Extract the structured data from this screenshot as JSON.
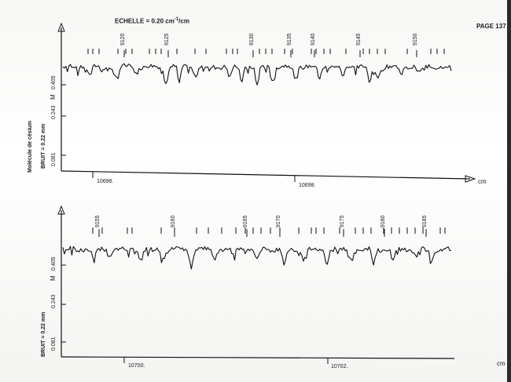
{
  "header": {
    "echelle_label": "ECHELLE",
    "echelle_value": "= 0.20 cm",
    "echelle_exp": "-1",
    "echelle_unit": "/cm",
    "page": "PAGE 137"
  },
  "left_labels": {
    "molecule": "Molécule de césium",
    "bruit": "BRUIT = 0.22 mm"
  },
  "chart_data": [
    {
      "type": "line",
      "title": "",
      "xlabel": "cm",
      "ylabel": "M",
      "x_ticks": [
        "10696.",
        "10698."
      ],
      "y_ticks": [
        "0.081",
        "0.243",
        "0.405"
      ],
      "line_numbers": [
        "9120",
        "9125",
        "9130",
        "9135",
        "9140",
        "9145",
        "9150"
      ],
      "series": [
        {
          "values": [
            0.405,
            0.41,
            0.42,
            0.4,
            0.39,
            0.405,
            0.415,
            0.402,
            0.3,
            0.41,
            0.42,
            0.405,
            0.39,
            0.3,
            0.41,
            0.415,
            0.4,
            0.39,
            0.35,
            0.41,
            0.42,
            0.4,
            0.405,
            0.395,
            0.35,
            0.41,
            0.42,
            0.4,
            0.38,
            0.2,
            0.38,
            0.41,
            0.42,
            0.4,
            0.39,
            0.35,
            0.41,
            0.415,
            0.4,
            0.36,
            0.38,
            0.4,
            0.39,
            0.35,
            0.3,
            0.38,
            0.4,
            0.36,
            0.3,
            0.25,
            0.35,
            0.39,
            0.4,
            0.38,
            0.2,
            0.38,
            0.4,
            0.415,
            0.4,
            0.39,
            0.35,
            0.41,
            0.415,
            0.4,
            0.38,
            0.405,
            0.41,
            0.36,
            0.3,
            0.39,
            0.41,
            0.42,
            0.4,
            0.39,
            0.35,
            0.38,
            0.4,
            0.36,
            0.3,
            0.25,
            0.36,
            0.39,
            0.41,
            0.4,
            0.38,
            0.35,
            0.4,
            0.42,
            0.41,
            0.39,
            0.4
          ],
          "dips": [
            {
              "x": 0.07,
              "y": 0.3
            },
            {
              "x": 0.1,
              "y": 0.36
            },
            {
              "x": 0.14,
              "y": 0.27
            },
            {
              "x": 0.19,
              "y": 0.33
            },
            {
              "x": 0.265,
              "y": 0.2
            },
            {
              "x": 0.3,
              "y": 0.28
            },
            {
              "x": 0.34,
              "y": 0.3
            },
            {
              "x": 0.43,
              "y": 0.27
            },
            {
              "x": 0.46,
              "y": 0.24
            },
            {
              "x": 0.5,
              "y": 0.18
            },
            {
              "x": 0.54,
              "y": 0.26
            },
            {
              "x": 0.6,
              "y": 0.3
            },
            {
              "x": 0.66,
              "y": 0.27
            },
            {
              "x": 0.72,
              "y": 0.29
            },
            {
              "x": 0.79,
              "y": 0.22
            },
            {
              "x": 0.81,
              "y": 0.26
            },
            {
              "x": 0.87,
              "y": 0.31
            },
            {
              "x": 0.92,
              "y": 0.33
            }
          ]
        }
      ]
    },
    {
      "type": "line",
      "title": "",
      "xlabel": "cm",
      "ylabel": "M",
      "x_ticks": [
        "10700.",
        "10702."
      ],
      "y_ticks": [
        "0.081",
        "0.243",
        "0.405"
      ],
      "line_numbers": [
        "9155",
        "9160",
        "9165",
        "9170",
        "9175",
        "9180",
        "9185"
      ],
      "series": [
        {
          "dips": [
            {
              "x": 0.08,
              "y": 0.27
            },
            {
              "x": 0.12,
              "y": 0.33
            },
            {
              "x": 0.2,
              "y": 0.3
            },
            {
              "x": 0.26,
              "y": 0.28
            },
            {
              "x": 0.33,
              "y": 0.21
            },
            {
              "x": 0.39,
              "y": 0.3
            },
            {
              "x": 0.44,
              "y": 0.32
            },
            {
              "x": 0.5,
              "y": 0.27
            },
            {
              "x": 0.57,
              "y": 0.2
            },
            {
              "x": 0.62,
              "y": 0.29
            },
            {
              "x": 0.68,
              "y": 0.25
            },
            {
              "x": 0.74,
              "y": 0.31
            },
            {
              "x": 0.8,
              "y": 0.24
            },
            {
              "x": 0.85,
              "y": 0.26
            },
            {
              "x": 0.91,
              "y": 0.3
            },
            {
              "x": 0.95,
              "y": 0.27
            }
          ]
        }
      ]
    }
  ]
}
